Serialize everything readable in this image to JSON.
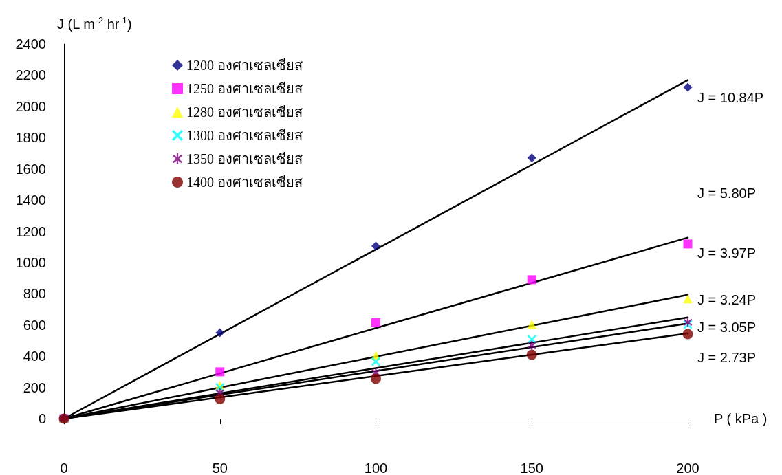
{
  "chart_data": {
    "type": "scatter",
    "xlabel": "P ( kPa )",
    "ylabel": "J (L m$^{-2}$ hr$^{-1}$)",
    "x": [
      0,
      50,
      100,
      150,
      200
    ],
    "xlim": [
      0,
      200
    ],
    "xticks": [
      0,
      50,
      100,
      150,
      200
    ],
    "ylim": [
      0,
      2400
    ],
    "yticks": [
      0,
      200,
      400,
      600,
      800,
      1000,
      1200,
      1400,
      1600,
      1800,
      2000,
      2200,
      2400
    ],
    "grid": false,
    "legend": "top left",
    "series": [
      {
        "name": "1200 องศาเซลเซียส",
        "color": "#000080",
        "marker": "diamond",
        "values": [
          0,
          550,
          1105,
          1670,
          2123
        ]
      },
      {
        "name": "1250 องศาเซลเซียส",
        "color": "#ff00ff",
        "marker": "square",
        "values": [
          0,
          300,
          615,
          890,
          1119
        ]
      },
      {
        "name": "1280 องศาเซลเซียส",
        "color": "#ffff00",
        "marker": "triangle",
        "values": [
          0,
          215,
          405,
          605,
          767
        ]
      },
      {
        "name": "1300 องศาเซลเซียส",
        "color": "#00ffff",
        "marker": "cross",
        "values": [
          0,
          200,
          365,
          507,
          603
        ]
      },
      {
        "name": "1350 องศาเซลเซียส",
        "color": "#800080",
        "marker": "star",
        "values": [
          0,
          165,
          295,
          470,
          617
        ]
      },
      {
        "name": "1400 องศาเซลเซียส",
        "color": "#800000",
        "marker": "circle",
        "values": [
          0,
          125,
          255,
          410,
          542
        ]
      },
      {
        "type": "line",
        "color": "#000000",
        "marker": "none",
        "values": [
          0,
          542,
          1084,
          1626,
          2168
        ]
      },
      {
        "type": "line",
        "color": "#000000",
        "marker": "none",
        "values": [
          0,
          290,
          580,
          870,
          1160
        ]
      },
      {
        "type": "line",
        "color": "#000000",
        "marker": "none",
        "values": [
          0,
          199,
          397,
          596,
          794
        ]
      },
      {
        "type": "line",
        "color": "#000000",
        "marker": "none",
        "values": [
          0,
          162,
          324,
          486,
          648
        ]
      },
      {
        "type": "line",
        "color": "#000000",
        "marker": "none",
        "values": [
          0,
          153,
          305,
          458,
          610
        ]
      },
      {
        "type": "line",
        "color": "#000000",
        "marker": "none",
        "values": [
          0,
          137,
          273,
          410,
          546
        ]
      }
    ],
    "annotations": [
      "J = 10.84P",
      "J = 5.80P",
      "J = 3.97P",
      "J = 3.24P",
      "J = 3.05P",
      "J = 2.73P"
    ]
  }
}
